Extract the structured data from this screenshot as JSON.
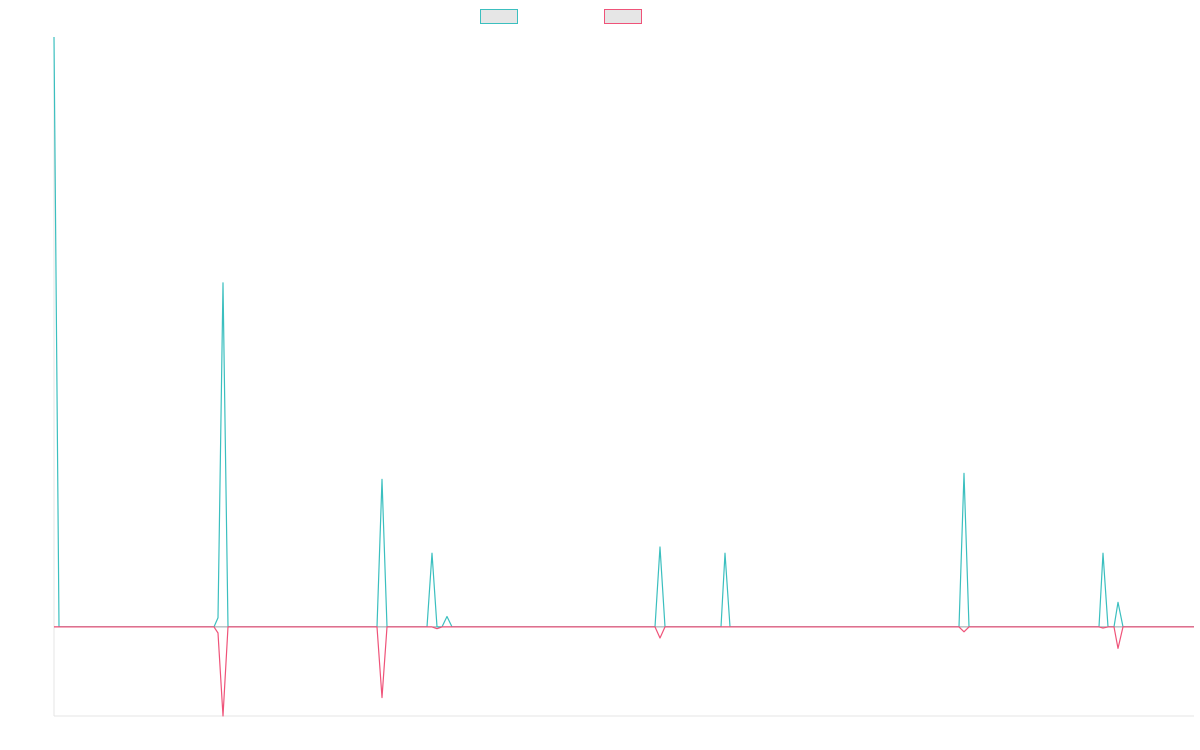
{
  "chart_data": {
    "type": "line",
    "title": "",
    "xlabel": "",
    "ylabel": "",
    "grid": false,
    "legend": "top-center",
    "xlim": [
      0,
      1140
    ],
    "ylim": [
      -1.45,
      9.6
    ],
    "series": [
      {
        "color": "#3bbfbf",
        "points": [
          [
            0,
            9.6
          ],
          [
            5,
            0
          ],
          [
            160,
            0
          ],
          [
            164,
            0.15
          ],
          [
            169,
            5.6
          ],
          [
            174,
            0
          ],
          [
            323,
            0
          ],
          [
            328,
            2.4
          ],
          [
            333,
            0
          ],
          [
            373,
            0
          ],
          [
            378,
            1.2
          ],
          [
            383,
            0
          ],
          [
            388,
            0
          ],
          [
            393,
            0.17
          ],
          [
            398,
            0
          ],
          [
            601,
            0
          ],
          [
            606,
            1.3
          ],
          [
            611,
            0
          ],
          [
            667,
            0
          ],
          [
            671,
            1.2
          ],
          [
            676,
            0
          ],
          [
            905,
            0
          ],
          [
            910,
            2.5
          ],
          [
            915,
            0
          ],
          [
            1045,
            0
          ],
          [
            1049,
            1.2
          ],
          [
            1054,
            0
          ],
          [
            1060,
            0
          ],
          [
            1064,
            0.4
          ],
          [
            1069,
            0
          ],
          [
            1140,
            0
          ]
        ]
      },
      {
        "color": "#ef5379",
        "points": [
          [
            0,
            0
          ],
          [
            160,
            0
          ],
          [
            164,
            -0.1
          ],
          [
            169,
            -1.45
          ],
          [
            174,
            0
          ],
          [
            323,
            0
          ],
          [
            328,
            -1.15
          ],
          [
            333,
            0
          ],
          [
            378,
            0
          ],
          [
            383,
            -0.03
          ],
          [
            388,
            0
          ],
          [
            601,
            0
          ],
          [
            606,
            -0.18
          ],
          [
            611,
            0
          ],
          [
            905,
            0
          ],
          [
            910,
            -0.08
          ],
          [
            915,
            0
          ],
          [
            1045,
            0
          ],
          [
            1049,
            -0.02
          ],
          [
            1054,
            0
          ],
          [
            1060,
            0
          ],
          [
            1064,
            -0.35
          ],
          [
            1069,
            0
          ],
          [
            1140,
            0
          ]
        ]
      }
    ]
  }
}
